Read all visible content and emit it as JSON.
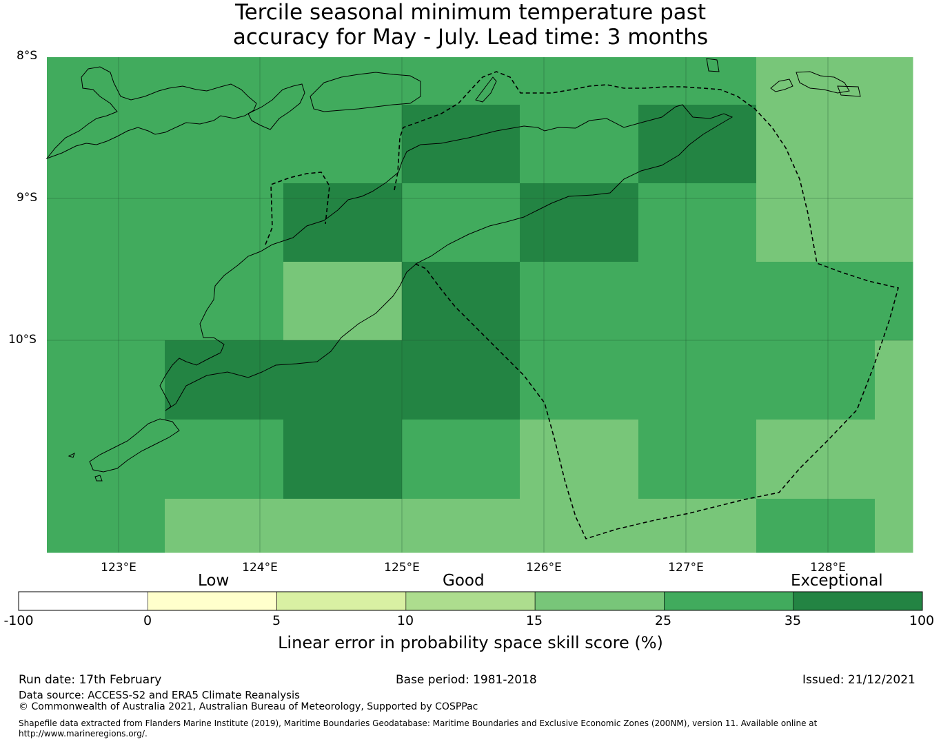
{
  "title": {
    "line1": "Tercile seasonal minimum temperature past",
    "line2": "accuracy for May - July. Lead time: 3 months"
  },
  "map": {
    "lat_labels": [
      "8°S",
      "9°S",
      "10°S"
    ],
    "lon_labels": [
      "123°E",
      "124°E",
      "125°E",
      "126°E",
      "127°E",
      "128°E"
    ],
    "colors": {
      "land_outline": "#000000",
      "eez_boundary": "#000000",
      "gridline": "#1a4d2e"
    },
    "grid_cells": [
      {
        "lon": 122.5,
        "lat": -8.0,
        "cls": "25-35"
      },
      {
        "lon": 123.3,
        "lat": -8.0,
        "cls": "25-35"
      },
      {
        "lon": 124.2,
        "lat": -8.0,
        "cls": "25-35"
      },
      {
        "lon": 125.0,
        "lat": -8.0,
        "cls": "25-35"
      },
      {
        "lon": 125.8,
        "lat": -8.0,
        "cls": "25-35"
      },
      {
        "lon": 126.7,
        "lat": -8.0,
        "cls": "25-35"
      },
      {
        "lon": 127.5,
        "lat": -8.0,
        "cls": "15-25"
      },
      {
        "lon": 128.3,
        "lat": -8.0,
        "cls": "15-25"
      },
      {
        "lon": 122.5,
        "lat": -8.3,
        "cls": "25-35"
      },
      {
        "lon": 123.3,
        "lat": -8.3,
        "cls": "25-35"
      },
      {
        "lon": 124.2,
        "lat": -8.3,
        "cls": "25-35"
      },
      {
        "lon": 125.0,
        "lat": -8.3,
        "cls": "35-100"
      },
      {
        "lon": 125.8,
        "lat": -8.3,
        "cls": "25-35"
      },
      {
        "lon": 126.7,
        "lat": -8.3,
        "cls": "35-100"
      },
      {
        "lon": 127.5,
        "lat": -8.3,
        "cls": "15-25"
      },
      {
        "lon": 128.3,
        "lat": -8.3,
        "cls": "15-25"
      },
      {
        "lon": 122.5,
        "lat": -8.9,
        "cls": "25-35"
      },
      {
        "lon": 123.3,
        "lat": -8.9,
        "cls": "25-35"
      },
      {
        "lon": 124.2,
        "lat": -8.9,
        "cls": "35-100"
      },
      {
        "lon": 125.0,
        "lat": -8.9,
        "cls": "25-35"
      },
      {
        "lon": 125.8,
        "lat": -8.9,
        "cls": "35-100"
      },
      {
        "lon": 126.7,
        "lat": -8.9,
        "cls": "25-35"
      },
      {
        "lon": 127.5,
        "lat": -8.9,
        "cls": "15-25"
      },
      {
        "lon": 128.3,
        "lat": -8.9,
        "cls": "15-25"
      },
      {
        "lon": 122.5,
        "lat": -9.4,
        "cls": "25-35"
      },
      {
        "lon": 123.3,
        "lat": -9.4,
        "cls": "25-35"
      },
      {
        "lon": 124.2,
        "lat": -9.4,
        "cls": "15-25"
      },
      {
        "lon": 125.0,
        "lat": -9.4,
        "cls": "35-100"
      },
      {
        "lon": 125.8,
        "lat": -9.4,
        "cls": "25-35"
      },
      {
        "lon": 126.7,
        "lat": -9.4,
        "cls": "25-35"
      },
      {
        "lon": 127.5,
        "lat": -9.4,
        "cls": "25-35"
      },
      {
        "lon": 128.3,
        "lat": -9.4,
        "cls": "25-35"
      },
      {
        "lon": 122.5,
        "lat": -10.0,
        "cls": "25-35"
      },
      {
        "lon": 123.3,
        "lat": -10.0,
        "cls": "35-100"
      },
      {
        "lon": 124.2,
        "lat": -10.0,
        "cls": "35-100"
      },
      {
        "lon": 125.0,
        "lat": -10.0,
        "cls": "35-100"
      },
      {
        "lon": 125.8,
        "lat": -10.0,
        "cls": "25-35"
      },
      {
        "lon": 126.7,
        "lat": -10.0,
        "cls": "25-35"
      },
      {
        "lon": 127.5,
        "lat": -10.0,
        "cls": "25-35"
      },
      {
        "lon": 128.3,
        "lat": -10.0,
        "cls": "15-25"
      },
      {
        "lon": 122.5,
        "lat": -10.6,
        "cls": "25-35"
      },
      {
        "lon": 123.3,
        "lat": -10.6,
        "cls": "25-35"
      },
      {
        "lon": 124.2,
        "lat": -10.6,
        "cls": "35-100"
      },
      {
        "lon": 125.0,
        "lat": -10.6,
        "cls": "25-35"
      },
      {
        "lon": 125.8,
        "lat": -10.6,
        "cls": "15-25"
      },
      {
        "lon": 126.7,
        "lat": -10.6,
        "cls": "25-35"
      },
      {
        "lon": 127.5,
        "lat": -10.6,
        "cls": "15-25"
      },
      {
        "lon": 128.3,
        "lat": -10.6,
        "cls": "15-25"
      },
      {
        "lon": 122.5,
        "lat": -11.1,
        "cls": "25-35"
      },
      {
        "lon": 123.3,
        "lat": -11.1,
        "cls": "15-25"
      },
      {
        "lon": 124.2,
        "lat": -11.1,
        "cls": "15-25"
      },
      {
        "lon": 125.0,
        "lat": -11.1,
        "cls": "15-25"
      },
      {
        "lon": 125.8,
        "lat": -11.1,
        "cls": "15-25"
      },
      {
        "lon": 126.7,
        "lat": -11.1,
        "cls": "15-25"
      },
      {
        "lon": 127.5,
        "lat": -11.1,
        "cls": "25-35"
      },
      {
        "lon": 128.3,
        "lat": -11.1,
        "cls": "15-25"
      }
    ]
  },
  "colorbar": {
    "category_words": [
      "Low",
      "Good",
      "Exceptional"
    ],
    "ticks": [
      "-100",
      "0",
      "5",
      "10",
      "15",
      "25",
      "35",
      "100"
    ],
    "bins": [
      {
        "range": "-100 to 0",
        "color": "#ffffff"
      },
      {
        "range": "0 to 5",
        "color": "#ffffcc"
      },
      {
        "range": "5 to 10",
        "color": "#d9f0a3"
      },
      {
        "range": "10 to 15",
        "color": "#addd8e"
      },
      {
        "range": "15 to 25",
        "color": "#78c679"
      },
      {
        "range": "25 to 35",
        "color": "#41ab5d"
      },
      {
        "range": "35 to 100",
        "color": "#238443"
      }
    ],
    "label": "Linear error in probability space skill score (%)"
  },
  "footer": {
    "run_date": "Run date: 17th February",
    "base_period": "Base period: 1981-2018",
    "issued": "Issued: 21/12/2021",
    "data_source": "Data source: ACCESS-S2 and ERA5 Climate Reanalysis",
    "copyright": "© Commonwealth of Australia 2021, Australian Bureau of Meteorology, Supported by COSPPac",
    "shapefile_line1": "Shapefile data extracted from Flanders Marine Institute (2019), Maritime Boundaries Geodatabase: Maritime Boundaries and Exclusive Economic Zones (200NM), version 11. Available online at",
    "shapefile_line2": "http://www.marineregions.org/."
  }
}
